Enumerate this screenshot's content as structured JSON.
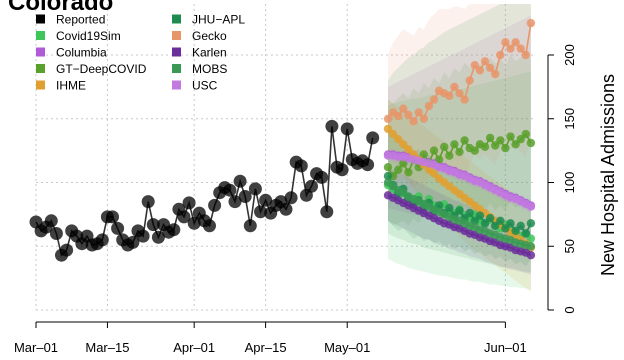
{
  "chart_data": {
    "type": "line",
    "title": "Colorado",
    "xlabel": "",
    "ylabel": "New Hospital Admissions",
    "y_axis_side": "right",
    "ylim": [
      0,
      240
    ],
    "xlim": [
      "2020-03-01",
      "2020-06-07"
    ],
    "grid": true,
    "legend_position": "top-left",
    "x_ticks": [
      {
        "date": "2020-03-01",
        "label": "Mar–01"
      },
      {
        "date": "2020-03-15",
        "label": "Mar–15"
      },
      {
        "date": "2020-04-01",
        "label": "Apr–01"
      },
      {
        "date": "2020-04-15",
        "label": "Apr–15"
      },
      {
        "date": "2020-05-01",
        "label": "May–01"
      },
      {
        "date": "2020-06-01",
        "label": "Jun–01"
      }
    ],
    "y_ticks": [
      0,
      50,
      100,
      150,
      200
    ],
    "forecast_start": "2020-05-09",
    "reported": {
      "name": "Reported",
      "color": "#000000",
      "x_start": "2020-03-01",
      "values": [
        69,
        62,
        65,
        70,
        60,
        43,
        47,
        62,
        58,
        52,
        58,
        51,
        52,
        55,
        73,
        73,
        64,
        55,
        51,
        53,
        62,
        58,
        85,
        67,
        57,
        67,
        61,
        63,
        79,
        73,
        84,
        68,
        76,
        70,
        66,
        82,
        92,
        96,
        94,
        85,
        101,
        89,
        66,
        95,
        77,
        86,
        76,
        82,
        85,
        79,
        88,
        116,
        113,
        90,
        97,
        107,
        104,
        77,
        144,
        112,
        110,
        142,
        118,
        115,
        117,
        114,
        135
      ]
    },
    "series": [
      {
        "name": "Covid19Sim",
        "color": "#3ec65a",
        "x_start": "2020-05-09",
        "values": [
          98,
          95,
          90,
          92,
          88,
          86,
          89,
          83,
          87,
          82,
          80,
          83,
          78,
          76,
          79,
          74,
          72,
          75,
          70,
          68,
          71,
          66,
          64,
          67,
          62,
          60,
          58,
          60,
          56
        ],
        "lower": [
          40,
          38,
          36,
          35,
          33,
          32,
          31,
          30,
          29,
          28,
          27,
          27,
          26,
          25,
          24,
          24,
          23,
          22,
          22,
          21,
          20,
          20,
          19,
          19,
          18,
          18,
          17,
          17,
          16
        ],
        "upper": [
          160,
          162,
          163,
          164,
          165,
          166,
          166,
          167,
          168,
          169,
          170,
          171,
          172,
          172,
          173,
          174,
          175,
          176,
          177,
          178,
          179,
          180,
          181,
          182,
          183,
          184,
          185,
          186,
          187
        ]
      },
      {
        "name": "Columbia",
        "color": "#b05ad8",
        "x_start": "2020-05-09",
        "values": [
          122,
          122,
          121,
          121,
          120,
          119,
          118,
          117,
          116,
          115,
          113,
          112,
          110,
          109,
          107,
          106,
          104,
          102,
          101,
          99,
          97,
          95,
          93,
          91,
          89,
          88,
          86,
          84,
          82
        ],
        "lower": [
          80,
          79,
          78,
          77,
          76,
          75,
          74,
          73,
          72,
          71,
          70,
          69,
          68,
          67,
          66,
          65,
          64,
          63,
          62,
          61,
          60,
          59,
          58,
          57,
          56,
          55,
          54,
          53,
          52
        ],
        "upper": [
          175,
          177,
          179,
          181,
          183,
          185,
          187,
          189,
          191,
          193,
          195,
          197,
          199,
          201,
          203,
          205,
          207,
          209,
          211,
          213,
          215,
          217,
          219,
          221,
          223,
          225,
          227,
          229,
          231
        ]
      },
      {
        "name": "GT−DeepCOVID",
        "color": "#5aa02c",
        "x_start": "2020-05-09",
        "values": [
          112,
          105,
          110,
          115,
          108,
          118,
          112,
          122,
          115,
          125,
          118,
          128,
          121,
          130,
          124,
          133,
          127,
          125,
          130,
          128,
          135,
          129,
          133,
          127,
          136,
          130,
          134,
          138,
          131
        ],
        "lower": [
          70,
          66,
          68,
          70,
          66,
          72,
          68,
          74,
          70,
          76,
          72,
          78,
          74,
          80,
          76,
          82,
          78,
          76,
          80,
          78,
          84,
          78,
          82,
          78,
          86,
          80,
          84,
          86,
          80
        ],
        "upper": [
          165,
          162,
          166,
          170,
          166,
          174,
          170,
          178,
          174,
          182,
          178,
          186,
          182,
          190,
          186,
          194,
          190,
          188,
          193,
          191,
          198,
          193,
          197,
          192,
          200,
          195,
          198,
          202,
          196
        ]
      },
      {
        "name": "IHME",
        "color": "#e0a030",
        "x_start": "2020-05-09",
        "values": [
          142,
          138,
          134,
          130,
          126,
          122,
          118,
          114,
          110,
          107,
          103,
          100,
          97,
          94,
          91,
          88,
          85,
          82,
          79,
          76,
          73,
          70,
          67,
          64,
          61,
          58,
          55,
          52,
          49
        ],
        "lower": [
          120,
          115,
          110,
          105,
          100,
          95,
          90,
          86,
          82,
          78,
          74,
          70,
          66,
          62,
          58,
          54,
          50,
          47,
          44,
          41,
          38,
          35,
          32,
          29,
          26,
          23,
          20,
          17,
          14
        ],
        "upper": [
          165,
          162,
          159,
          156,
          153,
          150,
          147,
          144,
          141,
          138,
          135,
          132,
          129,
          126,
          123,
          120,
          117,
          114,
          111,
          108,
          105,
          102,
          99,
          96,
          93,
          90,
          87,
          84,
          81
        ]
      },
      {
        "name": "JHU−APL",
        "color": "#1e8c50",
        "x_start": "2020-05-09",
        "values": [
          105,
          98,
          92,
          95,
          88,
          83,
          86,
          80,
          84,
          78,
          82,
          76,
          80,
          74,
          78,
          72,
          76,
          70,
          74,
          68,
          72,
          66,
          70,
          64,
          68,
          62,
          66,
          60,
          68
        ],
        "lower": [
          70,
          66,
          62,
          64,
          60,
          56,
          58,
          54,
          56,
          52,
          54,
          50,
          52,
          48,
          50,
          46,
          48,
          44,
          46,
          42,
          44,
          40,
          42,
          38,
          40,
          36,
          38,
          34,
          40
        ],
        "upper": [
          140,
          136,
          132,
          134,
          128,
          124,
          126,
          120,
          122,
          116,
          118,
          112,
          114,
          108,
          110,
          104,
          106,
          100,
          102,
          96,
          98,
          92,
          94,
          88,
          90,
          84,
          86,
          80,
          88
        ]
      },
      {
        "name": "Gecko",
        "color": "#e8956a",
        "x_start": "2020-05-09",
        "values": [
          150,
          155,
          152,
          158,
          153,
          148,
          155,
          150,
          160,
          165,
          172,
          170,
          168,
          175,
          170,
          165,
          180,
          192,
          188,
          195,
          190,
          185,
          200,
          210,
          205,
          210,
          205,
          200,
          225
        ],
        "lower": [
          100,
          102,
          100,
          104,
          100,
          96,
          100,
          96,
          104,
          108,
          112,
          110,
          108,
          112,
          108,
          104,
          114,
          122,
          118,
          122,
          118,
          114,
          124,
          130,
          126,
          128,
          124,
          120,
          138
        ],
        "upper": [
          200,
          210,
          215,
          220,
          218,
          215,
          222,
          220,
          228,
          232,
          236,
          236,
          236,
          238,
          238,
          236,
          240,
          240,
          240,
          240,
          240,
          240,
          240,
          240,
          240,
          240,
          240,
          240,
          240
        ]
      },
      {
        "name": "Karlen",
        "color": "#6a2d9a",
        "x_start": "2020-05-09",
        "values": [
          90,
          88,
          86,
          84,
          82,
          80,
          78,
          76,
          74,
          72,
          70,
          68,
          67,
          65,
          64,
          62,
          60,
          59,
          57,
          56,
          54,
          53,
          51,
          50,
          49,
          47,
          46,
          45,
          43
        ],
        "lower": [
          70,
          68,
          66,
          64,
          62,
          60,
          58,
          56,
          55,
          53,
          51,
          50,
          48,
          47,
          45,
          44,
          42,
          41,
          40,
          38,
          37,
          36,
          34,
          33,
          32,
          31,
          30,
          29,
          28
        ],
        "upper": [
          112,
          110,
          108,
          106,
          104,
          102,
          100,
          98,
          96,
          94,
          92,
          90,
          88,
          86,
          85,
          83,
          81,
          80,
          78,
          76,
          75,
          73,
          72,
          70,
          69,
          67,
          66,
          64,
          63
        ]
      },
      {
        "name": "MOBS",
        "color": "#3a9a55",
        "x_start": "2020-05-09",
        "values": [
          100,
          97,
          94,
          92,
          89,
          87,
          85,
          83,
          81,
          79,
          77,
          75,
          73,
          71,
          70,
          68,
          66,
          65,
          63,
          62,
          60,
          59,
          57,
          56,
          55,
          53,
          52,
          51,
          50
        ],
        "lower": [
          60,
          58,
          56,
          55,
          53,
          52,
          51,
          49,
          48,
          47,
          46,
          45,
          44,
          43,
          42,
          41,
          40,
          39,
          38,
          37,
          36,
          35,
          34,
          33,
          33,
          32,
          31,
          30,
          30
        ],
        "upper": [
          180,
          186,
          190,
          194,
          198,
          200,
          204,
          206,
          210,
          212,
          215,
          218,
          220,
          222,
          224,
          226,
          228,
          230,
          232,
          234,
          236,
          238,
          240,
          240,
          240,
          240,
          240,
          240,
          240
        ]
      },
      {
        "name": "USC",
        "color": "#c27ae0",
        "x_start": "2020-05-09",
        "values": [
          121,
          121,
          120,
          120,
          119,
          118,
          117,
          116,
          115,
          114,
          112,
          111,
          109,
          108,
          106,
          105,
          103,
          101,
          100,
          98,
          96,
          94,
          92,
          90,
          88,
          87,
          85,
          83,
          81
        ],
        "lower": [
          116,
          116,
          115,
          115,
          114,
          113,
          112,
          111,
          110,
          109,
          107,
          106,
          104,
          103,
          101,
          100,
          98,
          96,
          95,
          93,
          91,
          89,
          87,
          85,
          83,
          82,
          80,
          78,
          76
        ],
        "upper": [
          126,
          126,
          125,
          125,
          124,
          123,
          122,
          121,
          120,
          119,
          117,
          116,
          114,
          113,
          111,
          110,
          108,
          106,
          105,
          103,
          101,
          99,
          97,
          95,
          93,
          92,
          90,
          88,
          86
        ]
      }
    ],
    "legend": [
      {
        "name": "Reported",
        "color": "#000000"
      },
      {
        "name": "Covid19Sim",
        "color": "#3ec65a"
      },
      {
        "name": "Columbia",
        "color": "#b05ad8"
      },
      {
        "name": "GT−DeepCOVID",
        "color": "#5aa02c"
      },
      {
        "name": "IHME",
        "color": "#e0a030"
      },
      {
        "name": "JHU−APL",
        "color": "#1e8c50"
      },
      {
        "name": "Gecko",
        "color": "#e8956a"
      },
      {
        "name": "Karlen",
        "color": "#6a2d9a"
      },
      {
        "name": "MOBS",
        "color": "#3a9a55"
      },
      {
        "name": "USC",
        "color": "#c27ae0"
      }
    ]
  }
}
